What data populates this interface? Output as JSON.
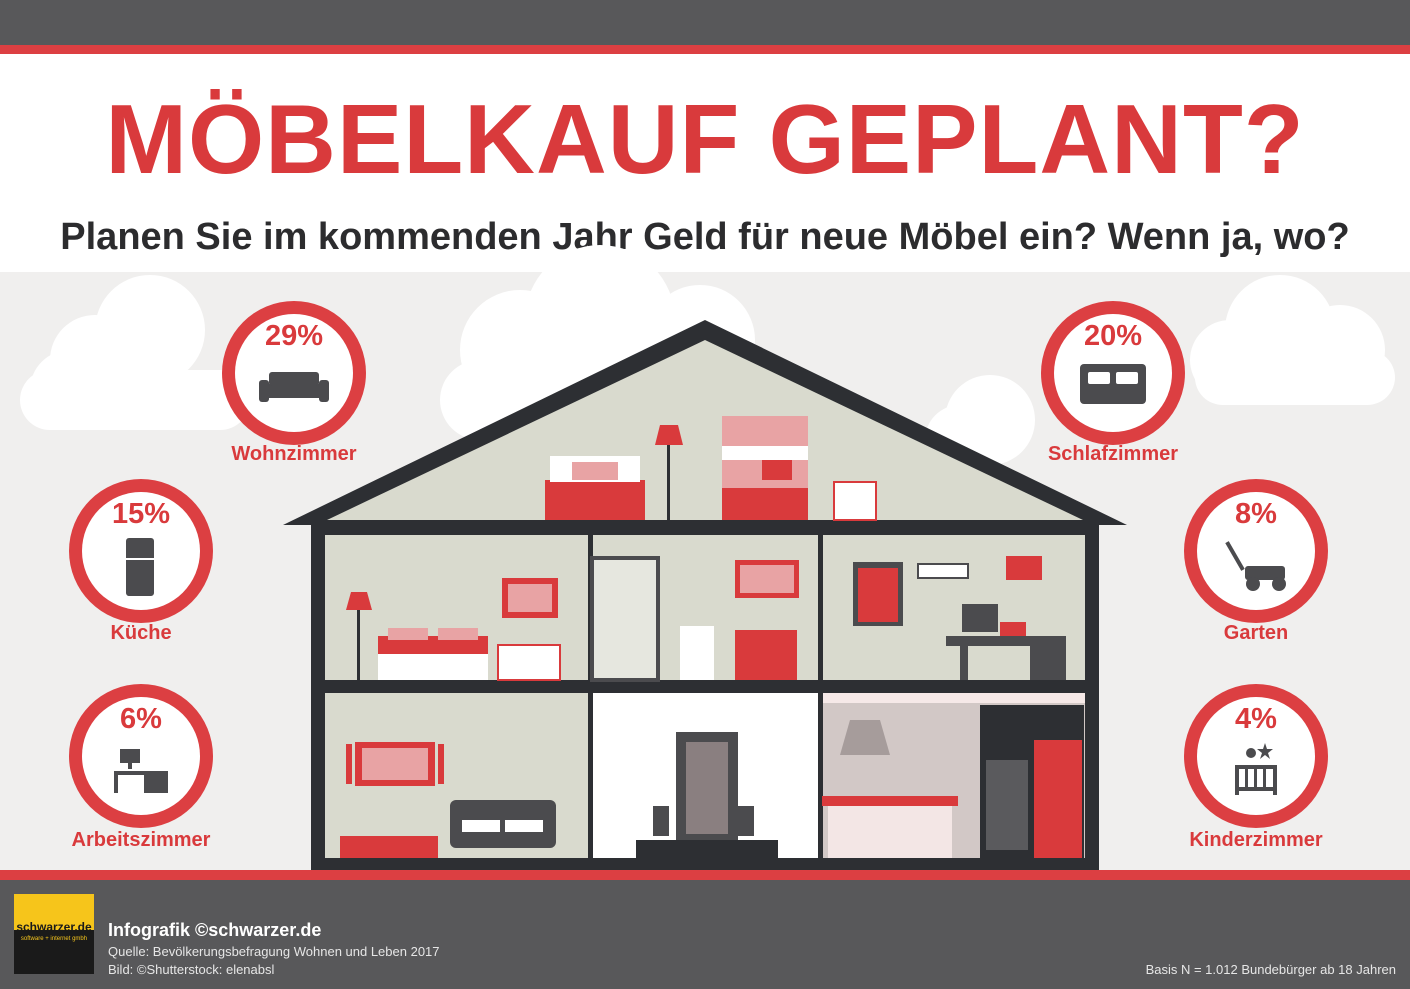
{
  "header": {
    "title": "MÖBELKAUF GEPLANT?",
    "subtitle": "Planen Sie im kommenden Jahr Geld für neue Möbel ein? Wenn ja, wo?"
  },
  "chart_data": {
    "type": "infographic",
    "unit": "%",
    "categories": [
      "Wohnzimmer",
      "Küche",
      "Arbeitszimmer",
      "Schlafzimmer",
      "Garten",
      "Kinderzimmer"
    ],
    "values": [
      29,
      15,
      6,
      20,
      8,
      4
    ],
    "labels": [
      "29%",
      "15%",
      "6%",
      "20%",
      "8%",
      "4%"
    ],
    "icons": [
      "sofa-icon",
      "fridge-icon",
      "desk-icon",
      "bed-icon",
      "lawnmower-icon",
      "crib-icon"
    ]
  },
  "footer": {
    "logo": "schwarzer.de",
    "logo_tagline": "software + internet gmbh",
    "credit": "Infografik ©schwarzer.de",
    "source": "Quelle: Bevölkerungsbefragung Wohnen und Leben 2017",
    "image_credit": "Bild: ©Shutterstock: elenabsl",
    "basis": "Basis N = 1.012 Bundebürger ab 18 Jahren"
  },
  "colors": {
    "accent": "#dc3f42",
    "dark": "#58585a",
    "house_outline": "#2d2f33",
    "wall": "#d7d8cb"
  }
}
